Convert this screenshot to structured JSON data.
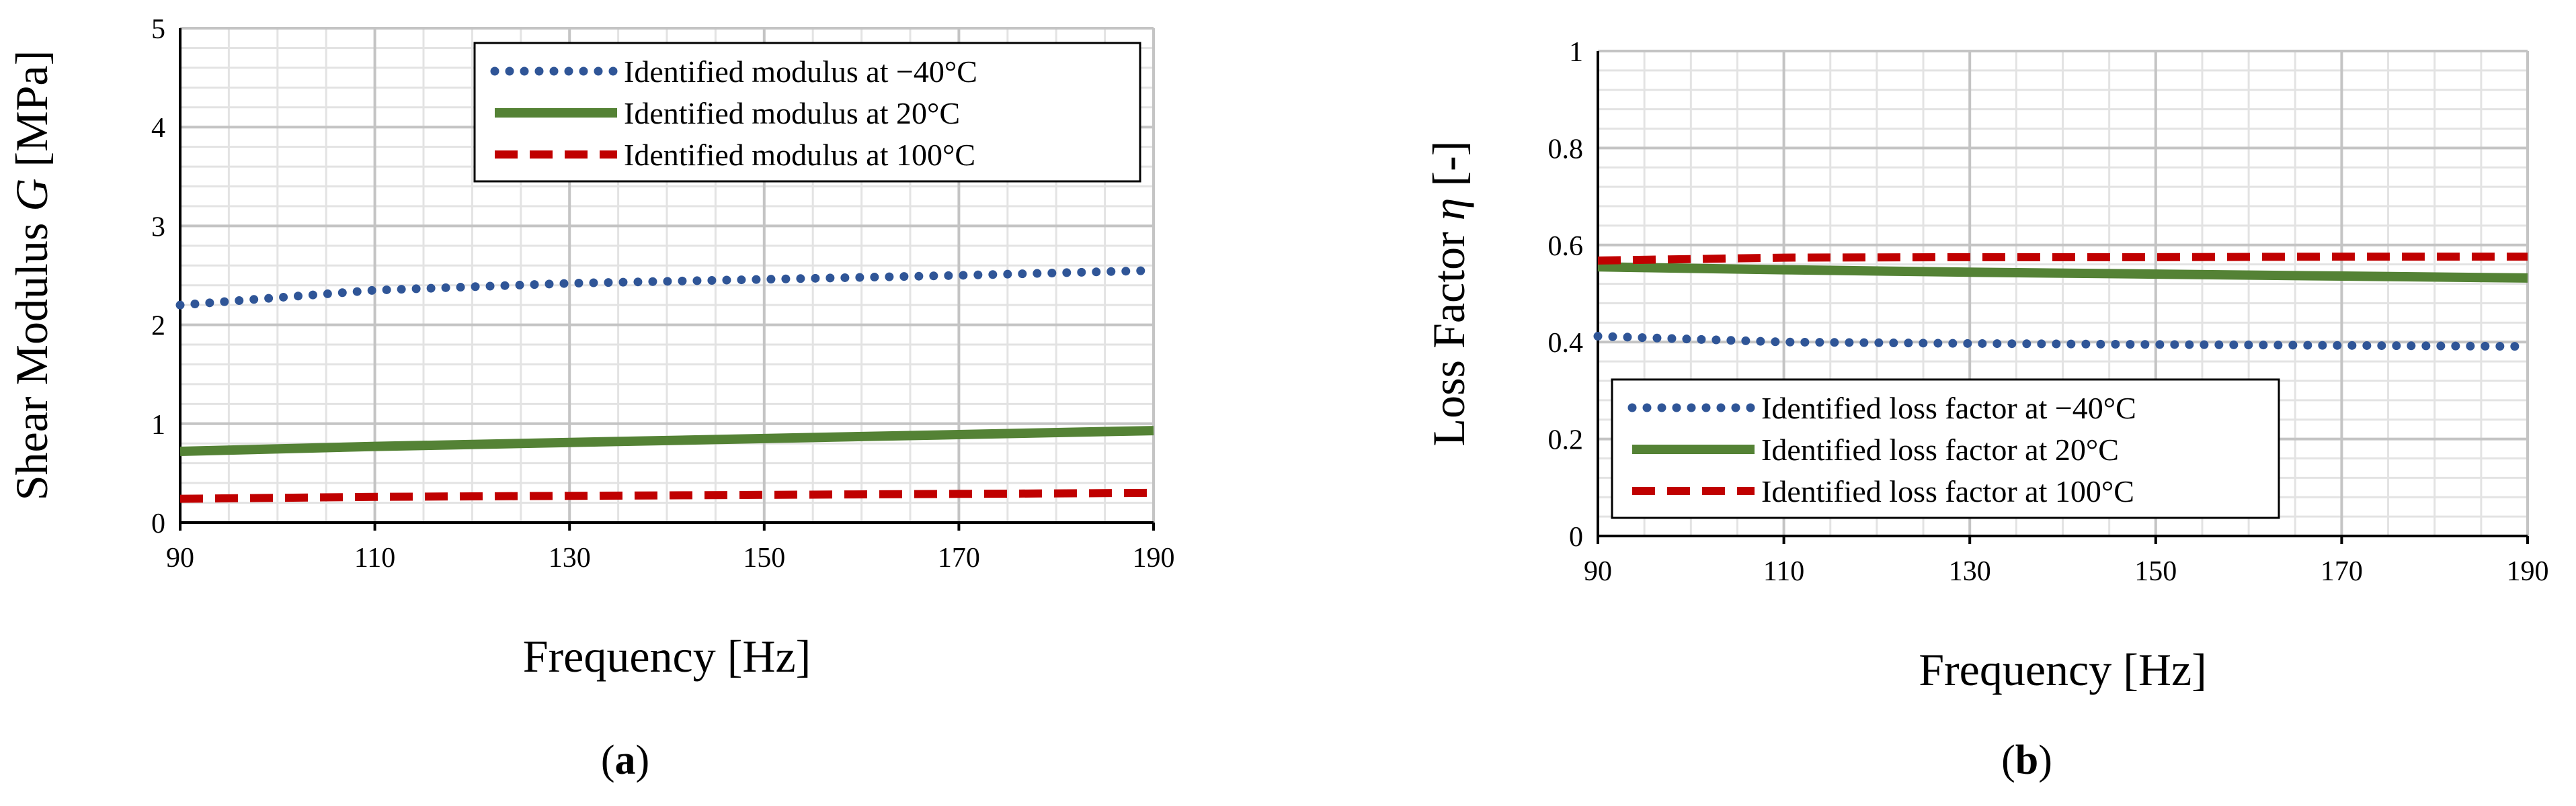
{
  "chart_data": [
    {
      "type": "line",
      "panel": "a",
      "caption_open": "(",
      "caption_label": "a",
      "caption_close": ")",
      "xlabel": "Frequency [Hz]",
      "ylabel_prefix": "Shear Modulus ",
      "ylabel_symbol": "G",
      "ylabel_suffix": " [MPa]",
      "xlim": [
        90,
        190
      ],
      "ylim": [
        0,
        5
      ],
      "xticks": [
        90,
        110,
        130,
        150,
        170,
        190
      ],
      "yticks": [
        0,
        1,
        2,
        3,
        4,
        5
      ],
      "x_minor_step": 5,
      "y_minor_step": 0.2,
      "grid": true,
      "legend_position": "top-right",
      "series": [
        {
          "name": "Identified modulus at −40°C",
          "style": "dotted",
          "color": "#2f5597",
          "x": [
            90,
            110,
            130,
            150,
            170,
            190
          ],
          "y": [
            2.2,
            2.35,
            2.42,
            2.46,
            2.5,
            2.55
          ]
        },
        {
          "name": "Identified modulus at 20°C",
          "style": "solid",
          "color": "#548235",
          "x": [
            90,
            110,
            130,
            150,
            170,
            190
          ],
          "y": [
            0.72,
            0.77,
            0.81,
            0.85,
            0.89,
            0.93
          ]
        },
        {
          "name": "Identified modulus at 100°C",
          "style": "dashed",
          "color": "#c00000",
          "x": [
            90,
            110,
            130,
            150,
            170,
            190
          ],
          "y": [
            0.24,
            0.26,
            0.27,
            0.28,
            0.29,
            0.3
          ]
        }
      ]
    },
    {
      "type": "line",
      "panel": "b",
      "caption_open": "(",
      "caption_label": "b",
      "caption_close": ")",
      "xlabel": "Frequency [Hz]",
      "ylabel_prefix": "Loss Factor ",
      "ylabel_symbol": "η",
      "ylabel_suffix": " [-]",
      "xlim": [
        90,
        190
      ],
      "ylim": [
        0,
        1
      ],
      "xticks": [
        90,
        110,
        130,
        150,
        170,
        190
      ],
      "yticks": [
        0,
        0.2,
        0.4,
        0.6,
        0.8,
        1
      ],
      "x_minor_step": 5,
      "y_minor_step": 0.04,
      "grid": true,
      "legend_position": "bottom-left",
      "series": [
        {
          "name": "Identified loss factor at −40°C",
          "style": "dotted",
          "color": "#2f5597",
          "x": [
            90,
            110,
            130,
            150,
            170,
            190
          ],
          "y": [
            0.412,
            0.4,
            0.397,
            0.395,
            0.393,
            0.391
          ]
        },
        {
          "name": "Identified loss factor at 20°C",
          "style": "solid",
          "color": "#548235",
          "x": [
            90,
            110,
            130,
            150,
            170,
            190
          ],
          "y": [
            0.555,
            0.549,
            0.544,
            0.54,
            0.536,
            0.532
          ]
        },
        {
          "name": "Identified loss factor at 100°C",
          "style": "dashed",
          "color": "#c00000",
          "x": [
            90,
            110,
            130,
            150,
            170,
            190
          ],
          "y": [
            0.568,
            0.574,
            0.575,
            0.575,
            0.576,
            0.576
          ]
        }
      ]
    }
  ]
}
